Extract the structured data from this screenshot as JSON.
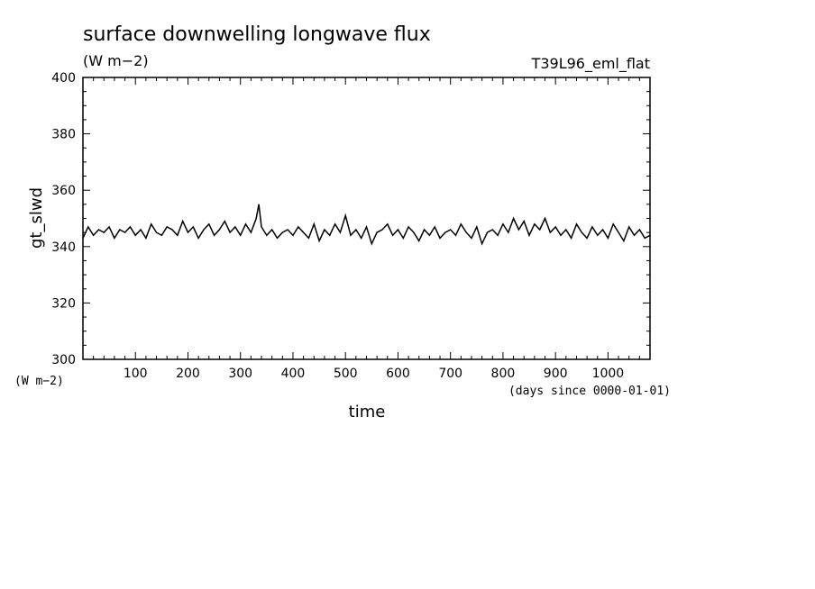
{
  "chart_data": {
    "type": "line",
    "title": "surface downwelling longwave flux",
    "units": "(W m−2)",
    "run_label": "T39L96_eml_flat",
    "ylabel": "gt_slwd",
    "ylabel_units": "(W m−2)",
    "xlabel": "time",
    "xunits": "(days since 0000-01-01)",
    "xlim": [
      0,
      1080
    ],
    "ylim": [
      300,
      400
    ],
    "xticks": [
      100,
      200,
      300,
      400,
      500,
      600,
      700,
      800,
      900,
      1000
    ],
    "yticks": [
      300,
      320,
      340,
      360,
      380,
      400
    ],
    "grid": false,
    "series": [
      {
        "x": [
          0,
          10,
          20,
          30,
          40,
          50,
          60,
          70,
          80,
          90,
          100,
          110,
          120,
          130,
          140,
          150,
          160,
          170,
          180,
          190,
          200,
          210,
          220,
          230,
          240,
          250,
          260,
          270,
          280,
          290,
          300,
          310,
          320,
          330,
          335,
          340,
          350,
          360,
          370,
          380,
          390,
          400,
          410,
          420,
          430,
          440,
          450,
          460,
          470,
          480,
          490,
          500,
          510,
          520,
          530,
          540,
          550,
          560,
          570,
          580,
          590,
          600,
          610,
          620,
          630,
          640,
          650,
          660,
          670,
          680,
          690,
          700,
          710,
          720,
          730,
          740,
          750,
          760,
          770,
          780,
          790,
          800,
          810,
          820,
          830,
          840,
          850,
          860,
          870,
          880,
          890,
          900,
          910,
          920,
          930,
          940,
          950,
          960,
          970,
          980,
          990,
          1000,
          1010,
          1020,
          1030,
          1040,
          1050,
          1060,
          1070,
          1080
        ],
        "values": [
          343,
          347,
          344,
          346,
          345,
          347,
          343,
          346,
          345,
          347,
          344,
          346,
          343,
          348,
          345,
          344,
          347,
          346,
          344,
          349,
          345,
          347,
          343,
          346,
          348,
          344,
          346,
          349,
          345,
          347,
          344,
          348,
          345,
          350,
          355,
          347,
          344,
          346,
          343,
          345,
          346,
          344,
          347,
          345,
          343,
          348,
          342,
          346,
          344,
          348,
          345,
          351,
          344,
          346,
          343,
          347,
          341,
          345,
          346,
          348,
          344,
          346,
          343,
          347,
          345,
          342,
          346,
          344,
          347,
          343,
          345,
          346,
          344,
          348,
          345,
          343,
          347,
          341,
          345,
          346,
          344,
          348,
          345,
          350,
          346,
          349,
          344,
          348,
          346,
          350,
          345,
          347,
          344,
          346,
          343,
          348,
          345,
          343,
          347,
          344,
          346,
          343,
          348,
          345,
          342,
          347,
          344,
          346,
          343,
          344
        ]
      }
    ]
  }
}
